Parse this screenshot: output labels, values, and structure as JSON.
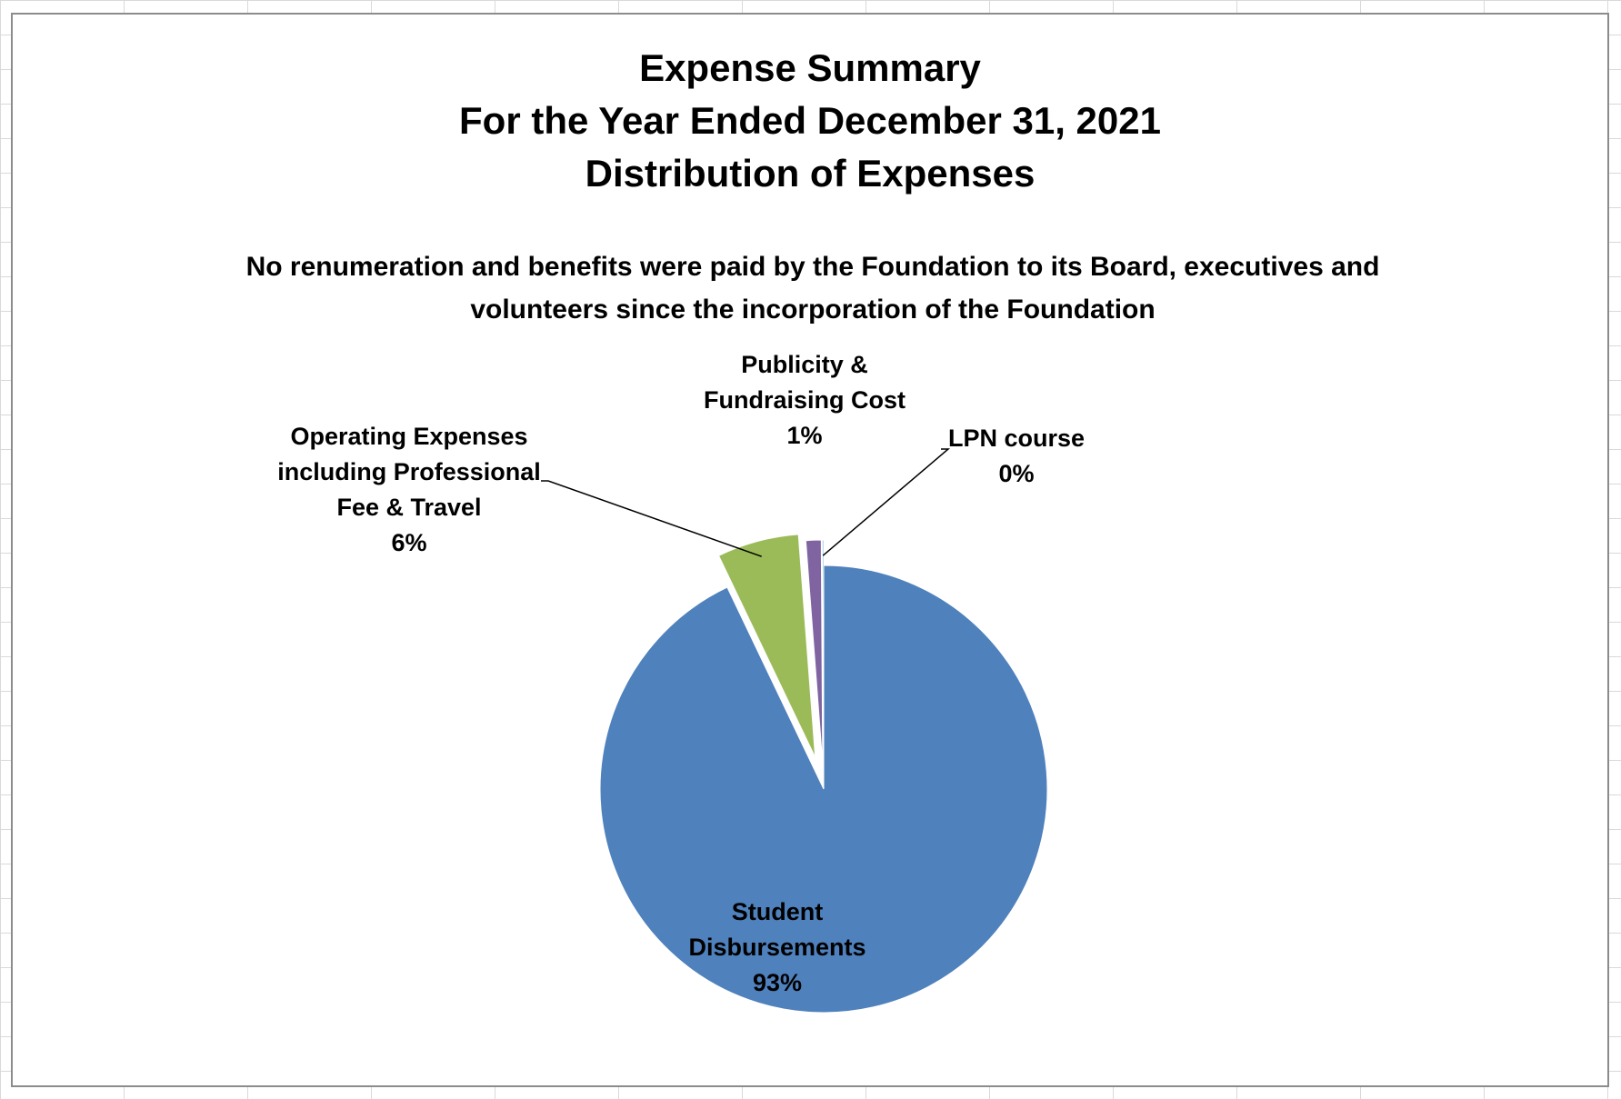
{
  "chart_data": {
    "type": "pie",
    "title_lines": [
      "Expense Summary",
      "For the Year Ended December 31, 2021",
      "Distribution of Expenses"
    ],
    "subtitle_lines": [
      "No renumeration and benefits were paid by the Foundation to its Board, executives and",
      "volunteers since the incorporation of the Foundation"
    ],
    "exploded": true,
    "slices": [
      {
        "label_lines": [
          "Student",
          "Disbursements"
        ],
        "percent_label": "93%",
        "value": 92.9,
        "color": "#4f81bd"
      },
      {
        "label_lines": [
          "Operating Expenses",
          "including Professional",
          "Fee & Travel"
        ],
        "percent_label": "6%",
        "value": 5.9,
        "color": "#9bbb59"
      },
      {
        "label_lines": [
          "Publicity &",
          "Fundraising Cost"
        ],
        "percent_label": "1%",
        "value": 1.1,
        "color": "#8064a2"
      },
      {
        "label_lines": [
          "LPN course"
        ],
        "percent_label": "0%",
        "value": 0.1,
        "color": "#4bacc6"
      }
    ]
  }
}
